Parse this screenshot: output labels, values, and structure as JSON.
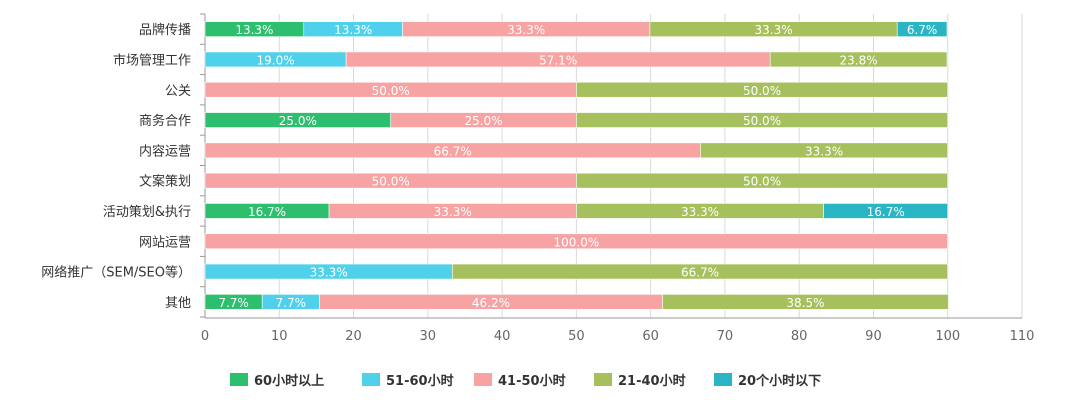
{
  "chart_data": {
    "type": "bar",
    "orientation": "horizontal",
    "stacked": true,
    "categories": [
      "品牌传播",
      "市场管理工作",
      "公关",
      "商务合作",
      "内容运营",
      "文案策划",
      "活动策划&执行",
      "网站运营",
      "网络推广（SEM/SEO等）",
      "其他"
    ],
    "series": [
      {
        "name": "60小时以上",
        "color": "#2dbf6e",
        "values": [
          13.3,
          0,
          0,
          25.0,
          0,
          0,
          16.7,
          0,
          0,
          7.7
        ]
      },
      {
        "name": "51-60小时",
        "color": "#4fd0eb",
        "values": [
          13.3,
          19.0,
          0,
          0,
          0,
          0,
          0,
          0,
          33.3,
          7.7
        ]
      },
      {
        "name": "41-50小时",
        "color": "#f7a3a3",
        "values": [
          33.3,
          57.1,
          50.0,
          25.0,
          66.7,
          50.0,
          33.3,
          100.0,
          0,
          46.2
        ]
      },
      {
        "name": "21-40小时",
        "color": "#a6c05d",
        "values": [
          33.3,
          23.8,
          50.0,
          50.0,
          33.3,
          50.0,
          33.3,
          0,
          66.7,
          38.5
        ]
      },
      {
        "name": "20个小时以下",
        "color": "#2ab5c5",
        "values": [
          6.7,
          0,
          0,
          0,
          0,
          0,
          16.7,
          0,
          0,
          0
        ]
      }
    ],
    "xlim": [
      0,
      110
    ],
    "xticks": [
      0,
      10,
      20,
      30,
      40,
      50,
      60,
      70,
      80,
      90,
      100,
      110
    ],
    "value_suffix": "%",
    "grid": true,
    "legend_position": "bottom"
  }
}
